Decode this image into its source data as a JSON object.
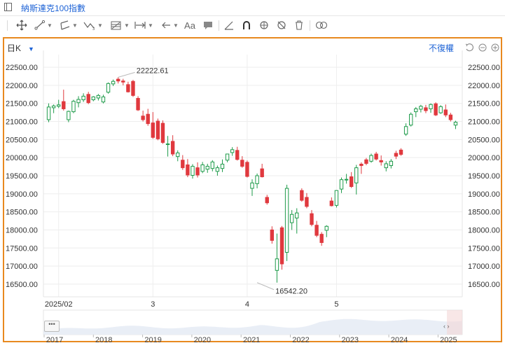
{
  "window": {
    "title": "納斯達克100指數"
  },
  "toolbar": {
    "items": [
      {
        "name": "crosshair-move-tool",
        "icon": "move-icon"
      },
      {
        "name": "trend-line-tool",
        "icon": "trend-line-icon"
      },
      {
        "name": "channel-tool",
        "icon": "channel-icon"
      },
      {
        "name": "wave-tool",
        "icon": "wave-icon"
      },
      {
        "name": "fibonacci-tool",
        "icon": "fib-icon"
      },
      {
        "name": "measure-tool",
        "icon": "measure-icon"
      },
      {
        "name": "arrow-tool",
        "icon": "arrow-left-icon"
      },
      {
        "name": "text-tool",
        "icon": "text-icon",
        "label": "Aa"
      },
      {
        "name": "comment-tool",
        "icon": "comment-icon"
      },
      {
        "name": "angle-tool",
        "icon": "angle-icon"
      },
      {
        "name": "magnet-tool",
        "icon": "magnet-icon"
      },
      {
        "name": "lock-tool",
        "icon": "lock-rotate-icon"
      },
      {
        "name": "hide-tool",
        "icon": "hide-icon"
      },
      {
        "name": "delete-tool",
        "icon": "trash-icon"
      },
      {
        "name": "compare-tool",
        "icon": "link-icon"
      }
    ]
  },
  "chart_header": {
    "period": "日K",
    "adjust": "不復權"
  },
  "colors": {
    "up": "#1e9b4a",
    "down": "#e0393e",
    "accent": "#1e63d6",
    "border": "#e8891f"
  },
  "chart_data": {
    "type": "candlestick",
    "x_labels": [
      {
        "label": "2025/02",
        "index": 2
      },
      {
        "label": "3",
        "index": 21
      },
      {
        "label": "4",
        "index": 40
      },
      {
        "label": "5",
        "index": 58
      }
    ],
    "ylim": [
      16150,
      22850
    ],
    "y_ticks": [
      22500,
      22000,
      21500,
      21000,
      20500,
      20000,
      19500,
      19000,
      18500,
      18000,
      17500,
      17000,
      16500
    ],
    "y_tick_labels": [
      "22500.00",
      "22000.00",
      "21500.00",
      "21000.00",
      "20500.00",
      "20000.00",
      "19500.00",
      "19000.00",
      "18500.00",
      "18000.00",
      "17500.00",
      "17000.00",
      "16500.00"
    ],
    "annotations": [
      {
        "label": "22222.61",
        "index": 14,
        "value": 22222.61
      },
      {
        "label": "16542.20",
        "index": 42,
        "value": 16542.2
      }
    ],
    "candles": [
      {
        "o": 21050,
        "h": 21500,
        "l": 20980,
        "c": 21400
      },
      {
        "o": 21380,
        "h": 21470,
        "l": 21230,
        "c": 21430
      },
      {
        "o": 21420,
        "h": 21600,
        "l": 21370,
        "c": 21460
      },
      {
        "o": 21550,
        "h": 21880,
        "l": 21300,
        "c": 21350
      },
      {
        "o": 21050,
        "h": 21300,
        "l": 20980,
        "c": 21280
      },
      {
        "o": 21270,
        "h": 21600,
        "l": 21230,
        "c": 21560
      },
      {
        "o": 21520,
        "h": 21700,
        "l": 21390,
        "c": 21610
      },
      {
        "o": 21600,
        "h": 21780,
        "l": 21540,
        "c": 21700
      },
      {
        "o": 21750,
        "h": 21820,
        "l": 21480,
        "c": 21520
      },
      {
        "o": 21600,
        "h": 21700,
        "l": 21560,
        "c": 21680
      },
      {
        "o": 21650,
        "h": 21760,
        "l": 21580,
        "c": 21720
      },
      {
        "o": 21540,
        "h": 21740,
        "l": 21500,
        "c": 21680
      },
      {
        "o": 21810,
        "h": 22080,
        "l": 21770,
        "c": 22050
      },
      {
        "o": 22040,
        "h": 22160,
        "l": 21980,
        "c": 22110
      },
      {
        "o": 22170,
        "h": 22222,
        "l": 22050,
        "c": 22120
      },
      {
        "o": 22120,
        "h": 22180,
        "l": 22000,
        "c": 22090
      },
      {
        "o": 22020,
        "h": 22100,
        "l": 21800,
        "c": 21820
      },
      {
        "o": 22110,
        "h": 22150,
        "l": 21680,
        "c": 21720
      },
      {
        "o": 21640,
        "h": 21700,
        "l": 21290,
        "c": 21320
      },
      {
        "o": 21150,
        "h": 21300,
        "l": 21000,
        "c": 21050
      },
      {
        "o": 21200,
        "h": 21350,
        "l": 20880,
        "c": 20940
      },
      {
        "o": 20960,
        "h": 21260,
        "l": 20520,
        "c": 20560
      },
      {
        "o": 21010,
        "h": 21080,
        "l": 20480,
        "c": 20520
      },
      {
        "o": 20950,
        "h": 21030,
        "l": 20380,
        "c": 20420
      },
      {
        "o": 20370,
        "h": 20600,
        "l": 20030,
        "c": 20380
      },
      {
        "o": 20450,
        "h": 20620,
        "l": 20040,
        "c": 20100
      },
      {
        "o": 20030,
        "h": 20200,
        "l": 19900,
        "c": 20130
      },
      {
        "o": 19930,
        "h": 20070,
        "l": 19660,
        "c": 19720
      },
      {
        "o": 19800,
        "h": 19960,
        "l": 19460,
        "c": 19520
      },
      {
        "o": 19510,
        "h": 19820,
        "l": 19420,
        "c": 19760
      },
      {
        "o": 19720,
        "h": 19870,
        "l": 19450,
        "c": 19520
      },
      {
        "o": 19620,
        "h": 19880,
        "l": 19570,
        "c": 19800
      },
      {
        "o": 19680,
        "h": 19830,
        "l": 19580,
        "c": 19760
      },
      {
        "o": 19700,
        "h": 19930,
        "l": 19620,
        "c": 19880
      },
      {
        "o": 19620,
        "h": 19780,
        "l": 19500,
        "c": 19720
      },
      {
        "o": 19700,
        "h": 19950,
        "l": 19600,
        "c": 19820
      },
      {
        "o": 19930,
        "h": 20110,
        "l": 19870,
        "c": 20100
      },
      {
        "o": 20140,
        "h": 20290,
        "l": 20050,
        "c": 20220
      },
      {
        "o": 20200,
        "h": 20300,
        "l": 19920,
        "c": 19950
      },
      {
        "o": 19930,
        "h": 20040,
        "l": 19720,
        "c": 19760
      },
      {
        "o": 19870,
        "h": 19920,
        "l": 19450,
        "c": 19480
      },
      {
        "o": 19150,
        "h": 19400,
        "l": 18940,
        "c": 19300
      },
      {
        "o": 19280,
        "h": 19560,
        "l": 19150,
        "c": 19500
      },
      {
        "o": 19690,
        "h": 19830,
        "l": 19450,
        "c": 19470
      },
      {
        "o": 18900,
        "h": 18970,
        "l": 18700,
        "c": 18750
      },
      {
        "o": 18000,
        "h": 18100,
        "l": 17620,
        "c": 17710
      },
      {
        "o": 16880,
        "h": 17900,
        "l": 16542,
        "c": 17200
      },
      {
        "o": 18060,
        "h": 18110,
        "l": 16900,
        "c": 17060
      },
      {
        "o": 17380,
        "h": 19250,
        "l": 17140,
        "c": 19150
      },
      {
        "o": 18200,
        "h": 18550,
        "l": 18000,
        "c": 18430
      },
      {
        "o": 18330,
        "h": 18600,
        "l": 17900,
        "c": 18470
      },
      {
        "o": 19090,
        "h": 19150,
        "l": 18780,
        "c": 18820
      },
      {
        "o": 18900,
        "h": 19020,
        "l": 18600,
        "c": 18650
      },
      {
        "o": 18450,
        "h": 18550,
        "l": 18100,
        "c": 18150
      },
      {
        "o": 18130,
        "h": 18250,
        "l": 17800,
        "c": 17850
      },
      {
        "o": 17880,
        "h": 17940,
        "l": 17560,
        "c": 17650
      },
      {
        "o": 17990,
        "h": 18130,
        "l": 17800,
        "c": 18100
      },
      {
        "o": 18800,
        "h": 18900,
        "l": 18650,
        "c": 18670
      },
      {
        "o": 18680,
        "h": 19100,
        "l": 18620,
        "c": 19090
      },
      {
        "o": 19130,
        "h": 19450,
        "l": 19020,
        "c": 19390
      },
      {
        "o": 19380,
        "h": 19550,
        "l": 19280,
        "c": 19400
      },
      {
        "o": 19470,
        "h": 19600,
        "l": 19160,
        "c": 19200
      },
      {
        "o": 19300,
        "h": 19800,
        "l": 18980,
        "c": 19720
      },
      {
        "o": 19820,
        "h": 19870,
        "l": 19550,
        "c": 19780
      },
      {
        "o": 19940,
        "h": 19990,
        "l": 19790,
        "c": 19840
      },
      {
        "o": 19900,
        "h": 20110,
        "l": 19860,
        "c": 20060
      },
      {
        "o": 20100,
        "h": 20160,
        "l": 19920,
        "c": 19960
      },
      {
        "o": 19920,
        "h": 20060,
        "l": 19780,
        "c": 19880
      },
      {
        "o": 19720,
        "h": 19900,
        "l": 19620,
        "c": 19830
      },
      {
        "o": 19780,
        "h": 19960,
        "l": 19700,
        "c": 19900
      },
      {
        "o": 20120,
        "h": 20190,
        "l": 19960,
        "c": 20040
      },
      {
        "o": 20210,
        "h": 20260,
        "l": 20050,
        "c": 20090
      },
      {
        "o": 20650,
        "h": 20950,
        "l": 20600,
        "c": 20860
      },
      {
        "o": 20900,
        "h": 21250,
        "l": 20860,
        "c": 21200
      },
      {
        "o": 21270,
        "h": 21400,
        "l": 21120,
        "c": 21350
      },
      {
        "o": 21340,
        "h": 21460,
        "l": 21250,
        "c": 21420
      },
      {
        "o": 21380,
        "h": 21460,
        "l": 21230,
        "c": 21300
      },
      {
        "o": 21350,
        "h": 21500,
        "l": 21240,
        "c": 21470
      },
      {
        "o": 21490,
        "h": 21530,
        "l": 21150,
        "c": 21180
      },
      {
        "o": 21240,
        "h": 21450,
        "l": 21210,
        "c": 21410
      },
      {
        "o": 21320,
        "h": 21470,
        "l": 21120,
        "c": 21180
      },
      {
        "o": 21180,
        "h": 21240,
        "l": 21000,
        "c": 21050
      },
      {
        "o": 20900,
        "h": 21020,
        "l": 20790,
        "c": 20980
      }
    ]
  },
  "navigator": {
    "years": [
      "2017",
      "2018",
      "2019",
      "2020",
      "2021",
      "2022",
      "2023",
      "2024",
      "2025"
    ],
    "scroll_label": "•••",
    "arrows": "‹ ›"
  }
}
